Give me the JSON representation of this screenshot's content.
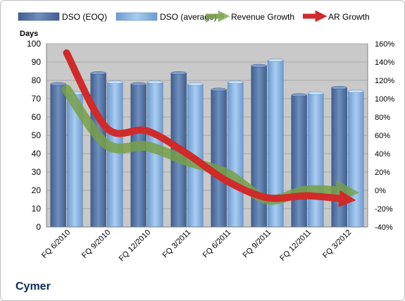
{
  "company": "Cymer",
  "colors": {
    "plot_bg": "#c9c9c9",
    "dso_eoq": "#5676a6",
    "dso_avg": "#8ab1dc",
    "revenue_growth": "#77a049",
    "ar_growth": "#d12a2a",
    "grid": "#9e9e9e",
    "axis_text": "#000000"
  },
  "chart_data": {
    "type": "bar",
    "categories": [
      "FQ 6/2010",
      "FQ 9/2010",
      "FQ 12/2010",
      "FQ 3/2011",
      "FQ 6/2011",
      "FQ 9/2011",
      "FQ 12/2011",
      "FQ 3/2012"
    ],
    "series": [
      {
        "name": "DSO (EOQ)",
        "type": "bar",
        "axis": "left",
        "values": [
          78,
          84,
          78,
          84,
          75,
          88,
          72,
          76
        ]
      },
      {
        "name": "DSO (average)",
        "type": "bar",
        "axis": "left",
        "values": [
          73,
          79,
          79,
          78,
          79,
          91,
          73,
          74
        ]
      },
      {
        "name": "Revenue Growth",
        "type": "line",
        "axis": "right",
        "values": [
          110,
          50,
          48,
          32,
          18,
          -10,
          0,
          -2
        ]
      },
      {
        "name": "AR Growth",
        "type": "line",
        "axis": "right",
        "values": [
          150,
          68,
          65,
          40,
          10,
          -8,
          -6,
          -10
        ]
      }
    ],
    "ylabel": "Days",
    "ylim": [
      0,
      100
    ],
    "yticks": [
      "0",
      "10",
      "20",
      "30",
      "40",
      "50",
      "60",
      "70",
      "80",
      "90",
      "100"
    ],
    "y2lim": [
      -40,
      160
    ],
    "y2ticks": [
      "-40%",
      "-20%",
      "0%",
      "20%",
      "40%",
      "60%",
      "80%",
      "100%",
      "120%",
      "140%",
      "160%"
    ],
    "legend_position": "top",
    "grid": true
  }
}
